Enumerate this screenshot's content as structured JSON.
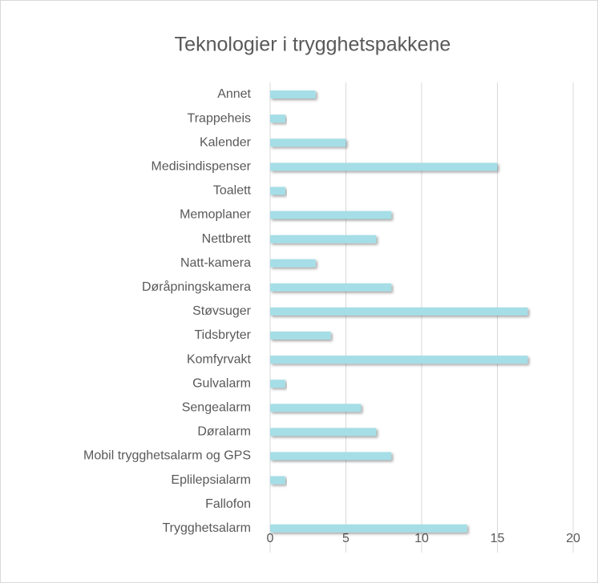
{
  "chart_data": {
    "type": "bar",
    "orientation": "horizontal",
    "title": "Teknologier i trygghetspakkene",
    "categories": [
      "Annet",
      "Trappeheis",
      "Kalender",
      "Medisindispenser",
      "Toalett",
      "Memoplaner",
      "Nettbrett",
      "Natt-kamera",
      "Døråpningskamera",
      "Støvsuger",
      "Tidsbryter",
      "Komfyrvakt",
      "Gulvalarm",
      "Sengealarm",
      "Døralarm",
      "Mobil trygghetsalarm og GPS",
      "Eplilepsialarm",
      "Fallofon",
      "Trygghetsalarm"
    ],
    "values": [
      3,
      1,
      5,
      15,
      1,
      8,
      7,
      3,
      8,
      17,
      4,
      17,
      1,
      6,
      7,
      8,
      1,
      0,
      13
    ],
    "color": "#a5dee6",
    "xlim": [
      0,
      20
    ],
    "xticks": [
      0,
      5,
      10,
      15,
      20
    ],
    "grid": true
  }
}
